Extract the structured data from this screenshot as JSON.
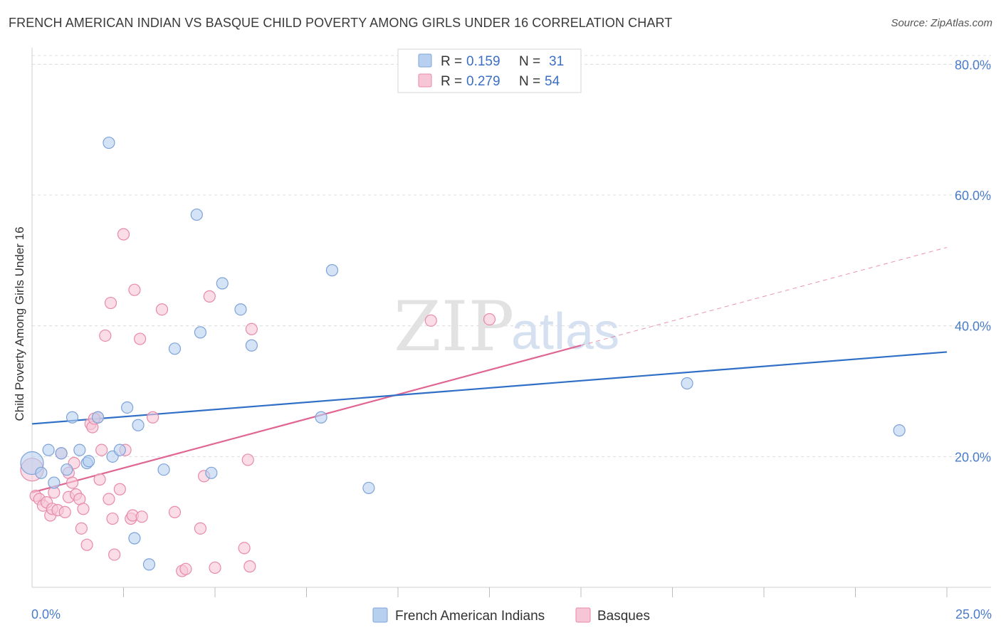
{
  "title": "FRENCH AMERICAN INDIAN VS BASQUE CHILD POVERTY AMONG GIRLS UNDER 16 CORRELATION CHART",
  "source": "Source: ZipAtlas.com",
  "watermark": {
    "zip": "ZIP",
    "atlas": "atlas"
  },
  "colors": {
    "blue_fill": "#b8d0f0",
    "blue_stroke": "#7ea3d8",
    "blue_line": "#2f6fc6",
    "pink_fill": "#f7c6d6",
    "pink_stroke": "#e88aa9",
    "pink_line": "#e06592",
    "grid": "#dcdcdc",
    "tick": "#4a7cc9"
  },
  "legend": {
    "rows": [
      {
        "r_label": "R =",
        "r_value": "0.159",
        "n_label": "N =",
        "n_value": "31"
      },
      {
        "r_label": "R =",
        "r_value": "0.279",
        "n_label": "N =",
        "n_value": "54"
      }
    ]
  },
  "bottom_legend": [
    "French American Indians",
    "Basques"
  ],
  "chart_data": {
    "type": "scatter",
    "title": "FRENCH AMERICAN INDIAN VS BASQUE CHILD POVERTY AMONG GIRLS UNDER 16 CORRELATION CHART",
    "xlabel": "",
    "ylabel": "Child Poverty Among Girls Under 16",
    "xlim": [
      0,
      25
    ],
    "ylim": [
      0,
      82
    ],
    "x_tick_labels": [
      "0.0%",
      "25.0%"
    ],
    "y_ticks": [
      20,
      40,
      60,
      80
    ],
    "y_tick_labels": [
      "20.0%",
      "40.0%",
      "60.0%",
      "80.0%"
    ],
    "grid": true,
    "legend_position": "top-center",
    "series": [
      {
        "name": "French American Indians",
        "r": 0.159,
        "n": 31,
        "points": [
          [
            0.0,
            19.0
          ],
          [
            0.25,
            17.5
          ],
          [
            0.45,
            21.0
          ],
          [
            0.6,
            16.0
          ],
          [
            0.8,
            20.5
          ],
          [
            0.95,
            18.0
          ],
          [
            1.1,
            26.0
          ],
          [
            1.3,
            21.0
          ],
          [
            1.5,
            19.0
          ],
          [
            1.55,
            19.3
          ],
          [
            1.8,
            26.0
          ],
          [
            2.1,
            68.0
          ],
          [
            2.2,
            20.0
          ],
          [
            2.4,
            21.0
          ],
          [
            2.6,
            27.5
          ],
          [
            2.8,
            7.5
          ],
          [
            2.9,
            24.8
          ],
          [
            3.2,
            3.5
          ],
          [
            3.6,
            18.0
          ],
          [
            3.9,
            36.5
          ],
          [
            4.5,
            57.0
          ],
          [
            4.6,
            39.0
          ],
          [
            4.9,
            17.5
          ],
          [
            5.2,
            46.5
          ],
          [
            5.7,
            42.5
          ],
          [
            6.0,
            37.0
          ],
          [
            7.9,
            26.0
          ],
          [
            8.2,
            48.5
          ],
          [
            9.2,
            15.2
          ],
          [
            17.9,
            31.2
          ],
          [
            23.7,
            24.0
          ]
        ],
        "trend": {
          "x": [
            0,
            25
          ],
          "y": [
            25.0,
            36.0
          ]
        }
      },
      {
        "name": "Basques",
        "r": 0.279,
        "n": 54,
        "points": [
          [
            0.0,
            18.0
          ],
          [
            0.1,
            14.0
          ],
          [
            0.2,
            13.5
          ],
          [
            0.3,
            12.5
          ],
          [
            0.4,
            13.0
          ],
          [
            0.5,
            11.0
          ],
          [
            0.55,
            12.0
          ],
          [
            0.6,
            14.5
          ],
          [
            0.7,
            11.8
          ],
          [
            0.8,
            20.5
          ],
          [
            0.9,
            11.5
          ],
          [
            1.0,
            17.5
          ],
          [
            1.0,
            13.8
          ],
          [
            1.1,
            16.0
          ],
          [
            1.15,
            19.0
          ],
          [
            1.2,
            14.2
          ],
          [
            1.3,
            13.5
          ],
          [
            1.35,
            9.0
          ],
          [
            1.4,
            12.0
          ],
          [
            1.5,
            6.5
          ],
          [
            1.6,
            25.0
          ],
          [
            1.65,
            24.5
          ],
          [
            1.8,
            26.0
          ],
          [
            1.85,
            16.5
          ],
          [
            1.9,
            21.0
          ],
          [
            2.0,
            38.5
          ],
          [
            2.1,
            13.5
          ],
          [
            2.2,
            10.5
          ],
          [
            2.25,
            5.0
          ],
          [
            2.4,
            15.0
          ],
          [
            2.5,
            54.0
          ],
          [
            2.55,
            21.0
          ],
          [
            2.7,
            10.5
          ],
          [
            2.75,
            11.0
          ],
          [
            2.8,
            45.5
          ],
          [
            2.95,
            38.0
          ],
          [
            3.0,
            10.8
          ],
          [
            3.3,
            26.0
          ],
          [
            3.55,
            42.5
          ],
          [
            3.9,
            11.5
          ],
          [
            4.1,
            2.5
          ],
          [
            4.2,
            2.8
          ],
          [
            4.6,
            9.0
          ],
          [
            4.7,
            17.0
          ],
          [
            4.85,
            44.5
          ],
          [
            5.0,
            3.0
          ],
          [
            5.8,
            6.0
          ],
          [
            5.9,
            19.5
          ],
          [
            5.95,
            3.2
          ],
          [
            6.0,
            39.5
          ],
          [
            10.9,
            40.8
          ],
          [
            12.5,
            41.0
          ],
          [
            2.15,
            43.5
          ],
          [
            1.7,
            25.8
          ]
        ],
        "trend": {
          "x": [
            0,
            15
          ],
          "y": [
            14.5,
            37.0
          ]
        },
        "trend_extension": {
          "x": [
            15,
            25
          ],
          "y": [
            37.0,
            52.0
          ]
        }
      }
    ]
  }
}
